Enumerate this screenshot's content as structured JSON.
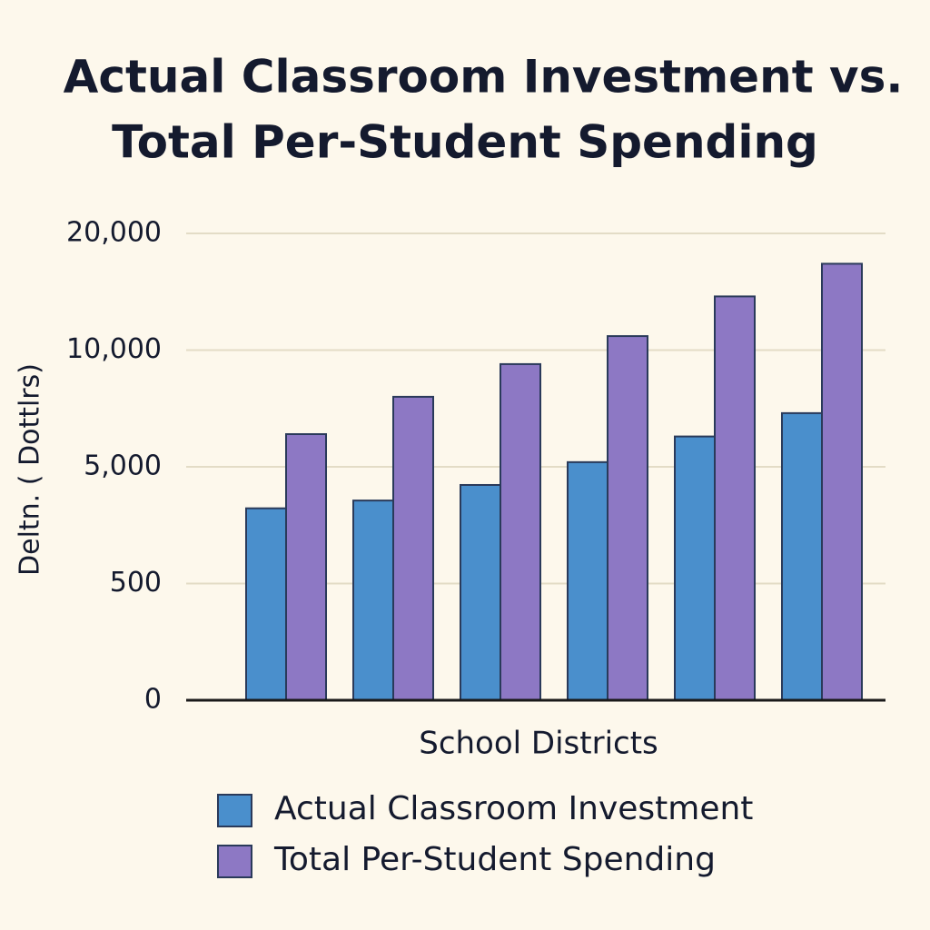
{
  "chart_data": {
    "type": "bar",
    "title": [
      "Actual Classroom Investment vs.",
      "Total Per-Student Spending"
    ],
    "y_label": "Deltn. ( Dottlrs)",
    "x_label": "School Districts",
    "categories": [
      null,
      null,
      null,
      null,
      null,
      null
    ],
    "series": [
      {
        "name": "Actual Classroom Investment",
        "color": "#4a8fcc",
        "values": [
          3400,
          3700,
          4300,
          5200,
          6300,
          7300
        ]
      },
      {
        "name": "Total Per-Student Spending",
        "color": "#8d78c4",
        "values": [
          6400,
          8000,
          9400,
          11200,
          14600,
          17400
        ]
      }
    ],
    "ylim": [
      0,
      20000
    ],
    "yticks": [
      0,
      500,
      {
        "value": 5000,
        "label": "5,000"
      },
      {
        "value": 10000,
        "label": "10,000"
      },
      {
        "value": 20000,
        "label": "20,000"
      }
    ],
    "grid": true
  }
}
